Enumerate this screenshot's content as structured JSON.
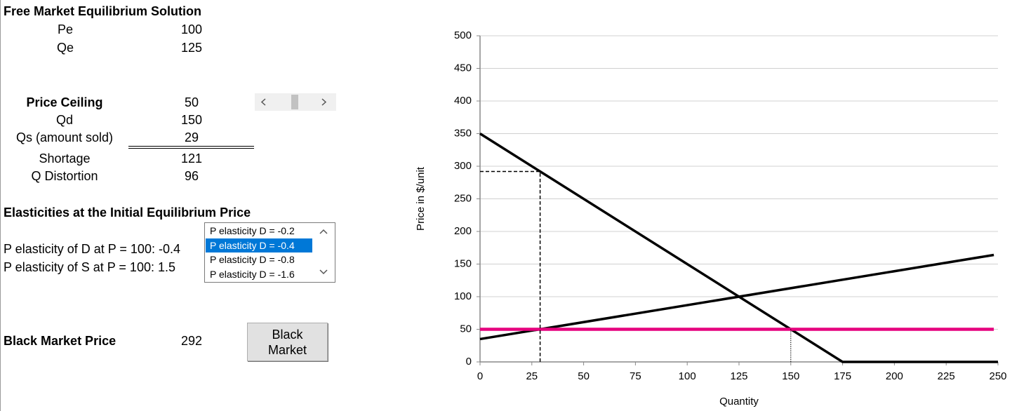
{
  "equilibrium": {
    "title": "Free Market Equilibrium Solution",
    "rows": [
      {
        "label": "Pe",
        "value": 100
      },
      {
        "label": "Qe",
        "value": 125
      }
    ]
  },
  "ceiling": {
    "rows": [
      {
        "label": "Price Ceiling",
        "value": 50
      },
      {
        "label": "Qd",
        "value": 150
      },
      {
        "label": "Qs (amount sold)",
        "value": 29
      },
      {
        "label": "Shortage",
        "value": 121
      },
      {
        "label": "Q Distortion",
        "value": 96
      }
    ]
  },
  "elasticities": {
    "title": "Elasticities at the Initial Equilibrium Price",
    "lines": [
      "P elasticity of D at P = 100: -0.4",
      "P elasticity of S at P = 100: 1.5"
    ],
    "listbox": {
      "options": [
        "P elasticity D = -0.2",
        "P elasticity D = -0.4",
        "P elasticity D = -0.8",
        "P elasticity D = -1.6"
      ],
      "selected": 1
    }
  },
  "black_market": {
    "label": "Black Market Price",
    "value": 292,
    "button": "Black Market"
  },
  "chart_data": {
    "type": "line",
    "x_label": "Quantity",
    "y_label": "Price in $/unit",
    "xlim": [
      0,
      250
    ],
    "ylim": [
      0,
      500
    ],
    "xticks": [
      0,
      25,
      50,
      75,
      100,
      125,
      150,
      175,
      200,
      225,
      250
    ],
    "yticks": [
      0,
      50,
      100,
      150,
      200,
      250,
      300,
      350,
      400,
      450,
      500
    ],
    "grid": true,
    "series": [
      {
        "color": "#000000",
        "style": "solid",
        "x": [
          0,
          175,
          250
        ],
        "values": [
          350,
          0,
          0
        ]
      },
      {
        "color": "#000000",
        "style": "solid",
        "x": [
          0,
          248
        ],
        "values": [
          35,
          164
        ]
      },
      {
        "color": "#e6007e",
        "style": "solid",
        "x": [
          0,
          248
        ],
        "values": [
          50,
          50
        ]
      },
      {
        "color": "#000000",
        "style": "dashed",
        "x": [
          0,
          29,
          29
        ],
        "values": [
          292,
          292,
          0
        ]
      },
      {
        "color": "#000000",
        "style": "dotted",
        "x": [
          150,
          150
        ],
        "values": [
          50,
          0
        ]
      }
    ]
  }
}
